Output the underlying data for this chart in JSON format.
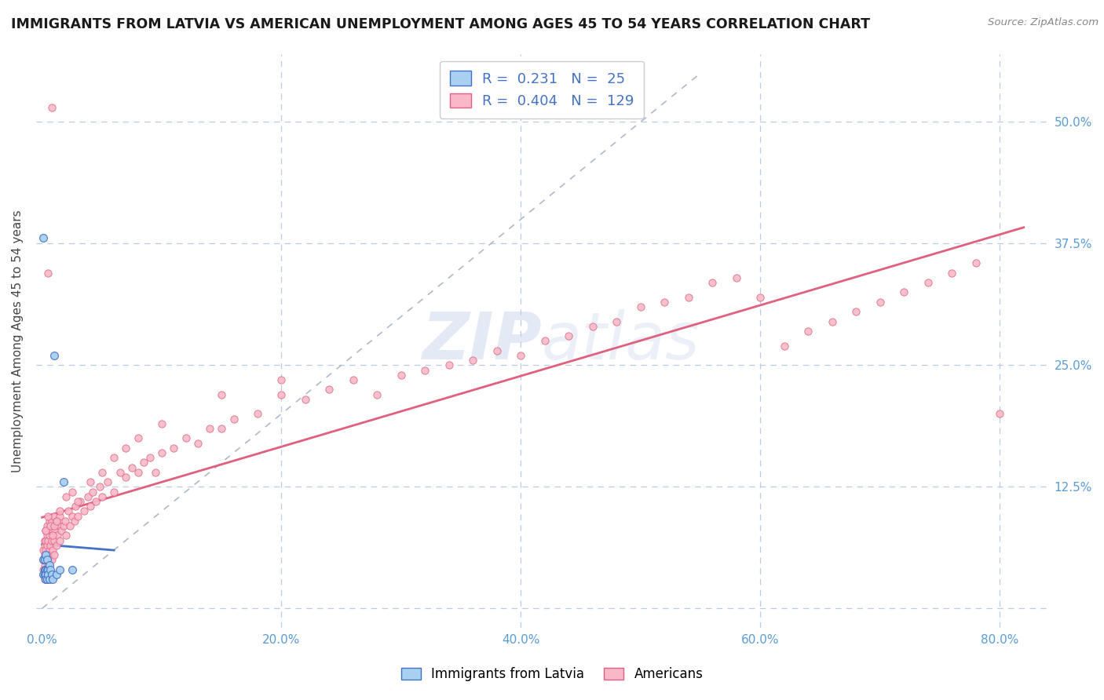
{
  "title": "IMMIGRANTS FROM LATVIA VS AMERICAN UNEMPLOYMENT AMONG AGES 45 TO 54 YEARS CORRELATION CHART",
  "source": "Source: ZipAtlas.com",
  "ylabel": "Unemployment Among Ages 45 to 54 years",
  "xlim": [
    -0.005,
    0.84
  ],
  "ylim": [
    -0.02,
    0.57
  ],
  "xticks": [
    0.0,
    0.2,
    0.4,
    0.6,
    0.8
  ],
  "yticks": [
    0.0,
    0.125,
    0.25,
    0.375,
    0.5
  ],
  "xtick_labels": [
    "0.0%",
    "20.0%",
    "40.0%",
    "60.0%",
    "80.0%"
  ],
  "ytick_labels": [
    "",
    "12.5%",
    "25.0%",
    "37.5%",
    "50.0%"
  ],
  "legend_blue_label": "Immigrants from Latvia",
  "legend_pink_label": "Americans",
  "blue_R": "0.231",
  "blue_N": "25",
  "pink_R": "0.404",
  "pink_N": "129",
  "blue_scatter_color": "#a8d0f0",
  "blue_edge_color": "#4472c4",
  "pink_scatter_color": "#f8b8c8",
  "pink_edge_color": "#e06080",
  "blue_line_color": "#4472c4",
  "pink_line_color": "#e06080",
  "diag_line_color": "#b0b8c8",
  "grid_color": "#b8cce4",
  "tick_color": "#5b9bd5",
  "background_color": "#ffffff",
  "watermark": "ZIPatlas",
  "blue_scatter_x": [
    0.001,
    0.001,
    0.001,
    0.002,
    0.002,
    0.002,
    0.003,
    0.003,
    0.003,
    0.003,
    0.004,
    0.004,
    0.004,
    0.005,
    0.005,
    0.006,
    0.006,
    0.007,
    0.008,
    0.009,
    0.01,
    0.012,
    0.015,
    0.018,
    0.025
  ],
  "blue_scatter_y": [
    0.381,
    0.05,
    0.035,
    0.05,
    0.04,
    0.035,
    0.055,
    0.04,
    0.035,
    0.03,
    0.05,
    0.04,
    0.03,
    0.04,
    0.035,
    0.045,
    0.03,
    0.04,
    0.035,
    0.03,
    0.26,
    0.035,
    0.04,
    0.13,
    0.04
  ],
  "pink_scatter_x": [
    0.001,
    0.001,
    0.001,
    0.001,
    0.002,
    0.002,
    0.002,
    0.002,
    0.002,
    0.002,
    0.003,
    0.003,
    0.003,
    0.003,
    0.003,
    0.003,
    0.003,
    0.004,
    0.004,
    0.004,
    0.004,
    0.004,
    0.005,
    0.005,
    0.005,
    0.005,
    0.005,
    0.006,
    0.006,
    0.006,
    0.006,
    0.007,
    0.007,
    0.007,
    0.008,
    0.008,
    0.008,
    0.009,
    0.009,
    0.01,
    0.01,
    0.01,
    0.011,
    0.012,
    0.012,
    0.013,
    0.014,
    0.015,
    0.015,
    0.016,
    0.018,
    0.019,
    0.02,
    0.022,
    0.023,
    0.025,
    0.027,
    0.028,
    0.03,
    0.032,
    0.035,
    0.038,
    0.04,
    0.042,
    0.045,
    0.048,
    0.05,
    0.055,
    0.06,
    0.065,
    0.07,
    0.075,
    0.08,
    0.085,
    0.09,
    0.095,
    0.1,
    0.11,
    0.12,
    0.13,
    0.14,
    0.15,
    0.16,
    0.18,
    0.2,
    0.22,
    0.24,
    0.26,
    0.28,
    0.3,
    0.32,
    0.34,
    0.36,
    0.38,
    0.4,
    0.42,
    0.44,
    0.46,
    0.48,
    0.5,
    0.52,
    0.54,
    0.56,
    0.58,
    0.6,
    0.62,
    0.64,
    0.66,
    0.68,
    0.7,
    0.72,
    0.74,
    0.76,
    0.78,
    0.8,
    0.003,
    0.005,
    0.007,
    0.009,
    0.01,
    0.012,
    0.015,
    0.02,
    0.025,
    0.03,
    0.04,
    0.05,
    0.06,
    0.07,
    0.08,
    0.1,
    0.15,
    0.2,
    0.005,
    0.008
  ],
  "pink_scatter_y": [
    0.05,
    0.04,
    0.06,
    0.035,
    0.055,
    0.045,
    0.065,
    0.04,
    0.07,
    0.03,
    0.06,
    0.05,
    0.07,
    0.04,
    0.08,
    0.035,
    0.055,
    0.065,
    0.05,
    0.075,
    0.04,
    0.085,
    0.055,
    0.07,
    0.045,
    0.08,
    0.035,
    0.06,
    0.075,
    0.05,
    0.09,
    0.065,
    0.055,
    0.08,
    0.07,
    0.05,
    0.09,
    0.06,
    0.08,
    0.055,
    0.07,
    0.095,
    0.08,
    0.065,
    0.09,
    0.075,
    0.085,
    0.07,
    0.095,
    0.08,
    0.085,
    0.09,
    0.075,
    0.1,
    0.085,
    0.095,
    0.09,
    0.105,
    0.095,
    0.11,
    0.1,
    0.115,
    0.105,
    0.12,
    0.11,
    0.125,
    0.115,
    0.13,
    0.12,
    0.14,
    0.135,
    0.145,
    0.14,
    0.15,
    0.155,
    0.14,
    0.16,
    0.165,
    0.175,
    0.17,
    0.185,
    0.185,
    0.195,
    0.2,
    0.22,
    0.215,
    0.225,
    0.235,
    0.22,
    0.24,
    0.245,
    0.25,
    0.255,
    0.265,
    0.26,
    0.275,
    0.28,
    0.29,
    0.295,
    0.31,
    0.315,
    0.32,
    0.335,
    0.34,
    0.32,
    0.27,
    0.285,
    0.295,
    0.305,
    0.315,
    0.325,
    0.335,
    0.345,
    0.355,
    0.2,
    0.08,
    0.095,
    0.085,
    0.075,
    0.085,
    0.09,
    0.1,
    0.115,
    0.12,
    0.11,
    0.13,
    0.14,
    0.155,
    0.165,
    0.175,
    0.19,
    0.22,
    0.235,
    0.345,
    0.515
  ]
}
